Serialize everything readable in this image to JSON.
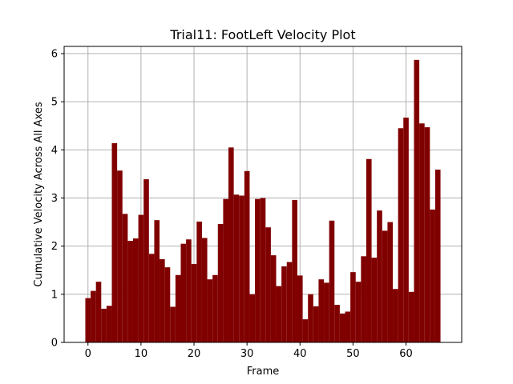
{
  "chart_data": {
    "type": "bar",
    "title": "Trial11: FootLeft Velocity Plot",
    "xlabel": "Frame",
    "ylabel": "Cumulative Velocity Across All Axes",
    "xlim": [
      -4.5,
      70.5
    ],
    "ylim": [
      0,
      6.15
    ],
    "xticks": [
      0,
      10,
      20,
      30,
      40,
      50,
      60
    ],
    "yticks": [
      0,
      1,
      2,
      3,
      4,
      5,
      6
    ],
    "grid": true,
    "bar_color": "#800000",
    "x": [
      0,
      1,
      2,
      3,
      4,
      5,
      6,
      7,
      8,
      9,
      10,
      11,
      12,
      13,
      14,
      15,
      16,
      17,
      18,
      19,
      20,
      21,
      22,
      23,
      24,
      25,
      26,
      27,
      28,
      29,
      30,
      31,
      32,
      33,
      34,
      35,
      36,
      37,
      38,
      39,
      40,
      41,
      42,
      43,
      44,
      45,
      46,
      47,
      48,
      49,
      50,
      51,
      52,
      53,
      54,
      55,
      56,
      57,
      58,
      59,
      60,
      61,
      62,
      63,
      64,
      65,
      66
    ],
    "values": [
      0.92,
      1.07,
      1.26,
      0.7,
      0.76,
      4.14,
      3.57,
      2.67,
      2.11,
      2.16,
      2.65,
      3.39,
      1.84,
      2.54,
      1.73,
      1.56,
      0.74,
      1.4,
      2.05,
      2.14,
      1.63,
      2.51,
      2.17,
      1.31,
      1.4,
      2.46,
      2.98,
      4.05,
      3.07,
      3.05,
      3.56,
      1.0,
      2.98,
      3.0,
      2.39,
      1.81,
      1.17,
      1.58,
      1.67,
      2.96,
      1.39,
      0.48,
      1.0,
      0.75,
      1.31,
      1.24,
      2.53,
      0.78,
      0.6,
      0.64,
      1.46,
      1.26,
      1.79,
      3.81,
      1.76,
      2.74,
      2.32,
      2.5,
      1.11,
      4.45,
      4.67,
      1.05,
      5.87,
      4.55,
      4.47,
      2.76,
      3.59
    ]
  }
}
